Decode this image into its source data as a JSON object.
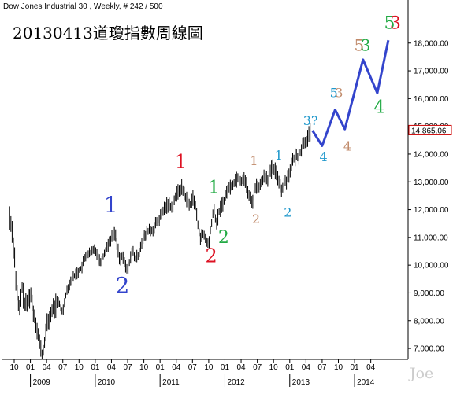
{
  "header": {
    "instrument": "Dow Jones Industrial 30 , Weekly, # 242 / 500",
    "annotation_title": "20130413道瓊指數周線圖"
  },
  "watermark": "Joe",
  "last_price_label": "14,865.06",
  "colors": {
    "bars": "#000000",
    "projection": "#3344cc",
    "last_price_box": "#cc0000",
    "wave_blue": "#3344cc",
    "wave_red": "#dd1122",
    "wave_green": "#22aa44",
    "wave_tan": "#c08a6a",
    "wave_cyan": "#2299cc",
    "grid_text": "#000000",
    "watermark": "#cccccc"
  },
  "chart_data": {
    "type": "bar",
    "title": "Dow Jones Industrial 30 , Weekly",
    "frequency": "weekly",
    "y_axis": {
      "side": "right",
      "min": 6500,
      "max": 18800,
      "ticks": [
        7000,
        8000,
        9000,
        10000,
        11000,
        12000,
        13000,
        14000,
        15000,
        16000,
        17000,
        18000
      ],
      "tick_labels": [
        "7,000.00",
        "8,000.00",
        "9,000.00",
        "10,000.00",
        "11,000.00",
        "12,000.00",
        "13,000.00",
        "14,000.00",
        "15,000.00",
        "16,000.00",
        "17,000.00",
        "18,000.00"
      ]
    },
    "x_axis": {
      "month_ticks": [
        {
          "t": 2008.75,
          "label": "10"
        },
        {
          "t": 2009.0,
          "label": "01"
        },
        {
          "t": 2009.25,
          "label": "04"
        },
        {
          "t": 2009.5,
          "label": "07"
        },
        {
          "t": 2009.75,
          "label": "10"
        },
        {
          "t": 2010.0,
          "label": "01"
        },
        {
          "t": 2010.25,
          "label": "04"
        },
        {
          "t": 2010.5,
          "label": "07"
        },
        {
          "t": 2010.75,
          "label": "10"
        },
        {
          "t": 2011.0,
          "label": "01"
        },
        {
          "t": 2011.25,
          "label": "04"
        },
        {
          "t": 2011.5,
          "label": "07"
        },
        {
          "t": 2011.75,
          "label": "10"
        },
        {
          "t": 2012.0,
          "label": "01"
        },
        {
          "t": 2012.25,
          "label": "04"
        },
        {
          "t": 2012.5,
          "label": "07"
        },
        {
          "t": 2012.75,
          "label": "10"
        },
        {
          "t": 2013.0,
          "label": "01"
        },
        {
          "t": 2013.25,
          "label": "04"
        },
        {
          "t": 2013.5,
          "label": "07"
        },
        {
          "t": 2013.75,
          "label": "10"
        },
        {
          "t": 2014.0,
          "label": "01"
        },
        {
          "t": 2014.25,
          "label": "04"
        }
      ],
      "year_labels": [
        {
          "t": 2009.0,
          "label": "2009"
        },
        {
          "t": 2010.0,
          "label": "2010"
        },
        {
          "t": 2011.0,
          "label": "2011"
        },
        {
          "t": 2012.0,
          "label": "2012"
        },
        {
          "t": 2013.0,
          "label": "2013"
        },
        {
          "t": 2014.0,
          "label": "2014"
        }
      ]
    },
    "price_path": [
      [
        2008.68,
        11700
      ],
      [
        2008.71,
        11400
      ],
      [
        2008.75,
        10500
      ],
      [
        2008.79,
        9000
      ],
      [
        2008.83,
        8300
      ],
      [
        2008.87,
        9200
      ],
      [
        2008.92,
        8500
      ],
      [
        2008.96,
        8700
      ],
      [
        2009.0,
        9000
      ],
      [
        2009.04,
        8400
      ],
      [
        2009.08,
        8000
      ],
      [
        2009.12,
        7500
      ],
      [
        2009.15,
        7100
      ],
      [
        2009.19,
        6700
      ],
      [
        2009.22,
        7300
      ],
      [
        2009.26,
        7900
      ],
      [
        2009.3,
        8100
      ],
      [
        2009.34,
        8400
      ],
      [
        2009.38,
        8500
      ],
      [
        2009.42,
        8700
      ],
      [
        2009.46,
        8500
      ],
      [
        2009.5,
        8300
      ],
      [
        2009.54,
        8900
      ],
      [
        2009.58,
        9200
      ],
      [
        2009.62,
        9400
      ],
      [
        2009.67,
        9600
      ],
      [
        2009.71,
        9700
      ],
      [
        2009.75,
        9800
      ],
      [
        2009.79,
        9900
      ],
      [
        2009.83,
        10200
      ],
      [
        2009.87,
        10400
      ],
      [
        2009.92,
        10400
      ],
      [
        2009.96,
        10500
      ],
      [
        2010.0,
        10600
      ],
      [
        2010.04,
        10300
      ],
      [
        2010.08,
        10100
      ],
      [
        2010.12,
        10300
      ],
      [
        2010.17,
        10600
      ],
      [
        2010.21,
        10800
      ],
      [
        2010.25,
        11000
      ],
      [
        2010.3,
        11200
      ],
      [
        2010.34,
        10700
      ],
      [
        2010.38,
        10200
      ],
      [
        2010.42,
        10300
      ],
      [
        2010.46,
        10000
      ],
      [
        2010.5,
        9800
      ],
      [
        2010.54,
        10300
      ],
      [
        2010.58,
        10500
      ],
      [
        2010.62,
        10200
      ],
      [
        2010.67,
        10400
      ],
      [
        2010.71,
        10800
      ],
      [
        2010.75,
        11000
      ],
      [
        2010.79,
        11100
      ],
      [
        2010.83,
        11300
      ],
      [
        2010.87,
        11200
      ],
      [
        2010.92,
        11400
      ],
      [
        2010.96,
        11600
      ],
      [
        2011.0,
        11700
      ],
      [
        2011.04,
        11900
      ],
      [
        2011.08,
        12100
      ],
      [
        2011.12,
        12200
      ],
      [
        2011.17,
        12100
      ],
      [
        2011.21,
        12300
      ],
      [
        2011.25,
        12500
      ],
      [
        2011.29,
        12700
      ],
      [
        2011.33,
        12800
      ],
      [
        2011.37,
        12600
      ],
      [
        2011.42,
        12300
      ],
      [
        2011.46,
        12100
      ],
      [
        2011.5,
        12500
      ],
      [
        2011.54,
        12200
      ],
      [
        2011.58,
        11500
      ],
      [
        2011.62,
        11000
      ],
      [
        2011.67,
        11100
      ],
      [
        2011.71,
        10900
      ],
      [
        2011.75,
        10700
      ],
      [
        2011.79,
        11500
      ],
      [
        2011.83,
        12000
      ],
      [
        2011.87,
        11500
      ],
      [
        2011.92,
        12000
      ],
      [
        2011.96,
        12200
      ],
      [
        2012.0,
        12400
      ],
      [
        2012.04,
        12700
      ],
      [
        2012.08,
        12800
      ],
      [
        2012.12,
        12900
      ],
      [
        2012.17,
        13100
      ],
      [
        2012.21,
        13200
      ],
      [
        2012.25,
        13000
      ],
      [
        2012.29,
        13200
      ],
      [
        2012.33,
        12900
      ],
      [
        2012.37,
        12500
      ],
      [
        2012.42,
        12200
      ],
      [
        2012.46,
        12700
      ],
      [
        2012.5,
        12900
      ],
      [
        2012.54,
        12800
      ],
      [
        2012.58,
        13100
      ],
      [
        2012.62,
        13200
      ],
      [
        2012.67,
        13100
      ],
      [
        2012.71,
        13400
      ],
      [
        2012.75,
        13500
      ],
      [
        2012.79,
        13300
      ],
      [
        2012.83,
        13100
      ],
      [
        2012.87,
        12700
      ],
      [
        2012.92,
        13000
      ],
      [
        2012.96,
        13100
      ],
      [
        2013.0,
        13400
      ],
      [
        2013.04,
        13700
      ],
      [
        2013.08,
        13900
      ],
      [
        2013.12,
        13900
      ],
      [
        2013.17,
        14100
      ],
      [
        2013.21,
        14400
      ],
      [
        2013.25,
        14500
      ],
      [
        2013.29,
        14600
      ],
      [
        2013.33,
        14865
      ]
    ],
    "projection_path": [
      {
        "t": 2013.35,
        "v": 14850
      },
      {
        "t": 2013.5,
        "v": 14300
      },
      {
        "t": 2013.7,
        "v": 15600
      },
      {
        "t": 2013.85,
        "v": 14900
      },
      {
        "t": 2014.13,
        "v": 17400
      },
      {
        "t": 2014.35,
        "v": 16200
      },
      {
        "t": 2014.52,
        "v": 18100
      }
    ],
    "last_price": 14865.06,
    "wave_labels": [
      {
        "text": "1",
        "t": 2010.24,
        "v": 11900,
        "color": "wave_blue",
        "size": 28
      },
      {
        "text": "2",
        "t": 2010.42,
        "v": 9000,
        "color": "wave_blue",
        "size": 28
      },
      {
        "text": "1",
        "t": 2011.32,
        "v": 13500,
        "color": "wave_red",
        "size": 24
      },
      {
        "text": "2",
        "t": 2011.79,
        "v": 10100,
        "color": "wave_red",
        "size": 24
      },
      {
        "text": "1",
        "t": 2011.83,
        "v": 12600,
        "color": "wave_green",
        "size": 22
      },
      {
        "text": "2",
        "t": 2011.98,
        "v": 10800,
        "color": "wave_green",
        "size": 22
      },
      {
        "text": "1",
        "t": 2012.45,
        "v": 13600,
        "color": "wave_tan",
        "size": 16
      },
      {
        "text": "2",
        "t": 2012.48,
        "v": 11500,
        "color": "wave_tan",
        "size": 16
      },
      {
        "text": "1",
        "t": 2012.83,
        "v": 13800,
        "color": "wave_cyan",
        "size": 16
      },
      {
        "text": "2",
        "t": 2012.97,
        "v": 11750,
        "color": "wave_cyan",
        "size": 16
      },
      {
        "text": "3?",
        "t": 2013.32,
        "v": 15050,
        "color": "wave_cyan",
        "size": 16
      },
      {
        "text": "4",
        "t": 2013.52,
        "v": 13750,
        "color": "wave_cyan",
        "size": 16
      },
      {
        "text": "5",
        "t": 2013.68,
        "v": 16050,
        "color": "wave_cyan",
        "size": 16
      },
      {
        "text": "3",
        "t": 2013.76,
        "v": 16050,
        "color": "wave_tan",
        "size": 16
      },
      {
        "text": "4",
        "t": 2013.89,
        "v": 14130,
        "color": "wave_tan",
        "size": 16
      },
      {
        "text": "5",
        "t": 2014.07,
        "v": 17730,
        "color": "wave_tan",
        "size": 20
      },
      {
        "text": "3",
        "t": 2014.17,
        "v": 17730,
        "color": "wave_green",
        "size": 20
      },
      {
        "text": "4",
        "t": 2014.38,
        "v": 15480,
        "color": "wave_green",
        "size": 22
      },
      {
        "text": "5",
        "t": 2014.54,
        "v": 18520,
        "color": "wave_green",
        "size": 22
      },
      {
        "text": "3",
        "t": 2014.63,
        "v": 18520,
        "color": "wave_red",
        "size": 22
      }
    ]
  }
}
